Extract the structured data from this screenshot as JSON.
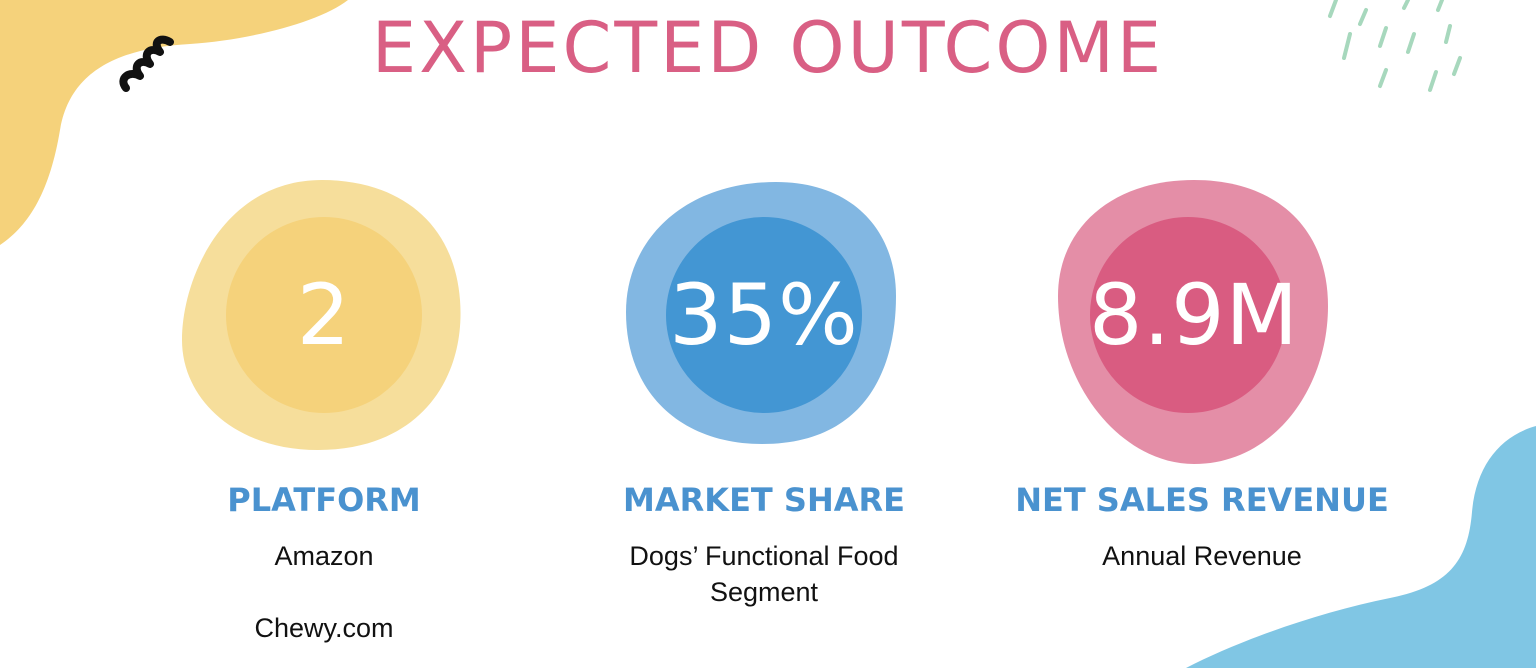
{
  "slide": {
    "title": "EXPECTED OUTCOME",
    "colors": {
      "title": "#d95f84",
      "label": "#4a92cf",
      "text": "#111111",
      "yellow_outer": "#f6de9b",
      "yellow_inner": "#f5d27b",
      "blue_outer": "#82b7e2",
      "blue_inner": "#4396d3",
      "pink_outer": "#e48ea7",
      "pink_inner": "#d95c81",
      "corner_yellow": "#f5d27b",
      "corner_blue": "#80c6e4",
      "dash_green": "#a7d8bd",
      "squiggle": "#111111"
    },
    "stats": [
      {
        "value": "2",
        "label": "PLATFORM",
        "desc_1": "Amazon",
        "desc_2": "Chewy.com"
      },
      {
        "value": "35%",
        "label": "MARKET SHARE",
        "desc_1": "Dogs’ Functional Food",
        "desc_2": "Segment"
      },
      {
        "value": "8.9M",
        "label": "NET SALES REVENUE",
        "desc_1": "Annual Revenue"
      }
    ]
  }
}
